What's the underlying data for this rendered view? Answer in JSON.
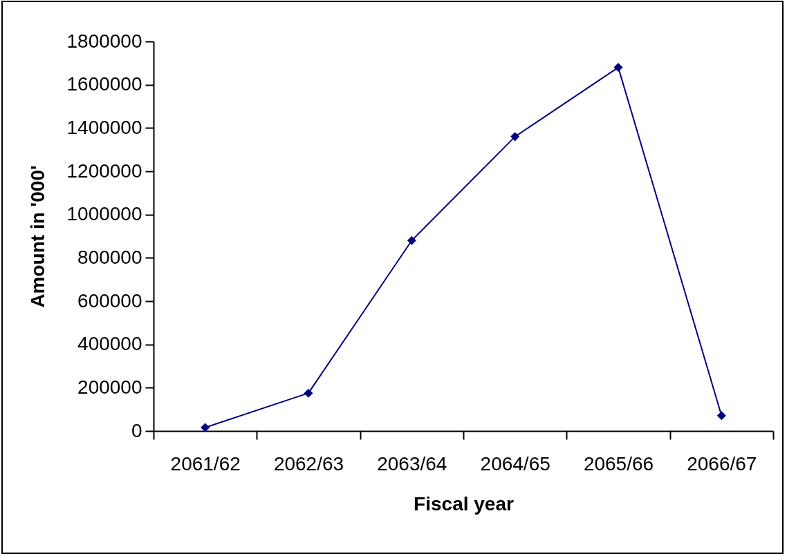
{
  "chart_data": {
    "type": "line",
    "xlabel": "Fiscal year",
    "ylabel": "Amount in '000'",
    "categories": [
      "2061/62",
      "2062/63",
      "2063/64",
      "2064/65",
      "2065/66",
      "2066/67"
    ],
    "series": [
      {
        "color": "#000080",
        "values": [
          16000,
          175000,
          880000,
          1360000,
          1680000,
          71000
        ]
      }
    ],
    "ylim": [
      0,
      1800000
    ],
    "yticks": [
      0,
      200000,
      400000,
      600000,
      800000,
      1000000,
      1200000,
      1400000,
      1600000,
      1800000
    ],
    "grid": false,
    "marker": "diamond",
    "line_style": "solid"
  }
}
